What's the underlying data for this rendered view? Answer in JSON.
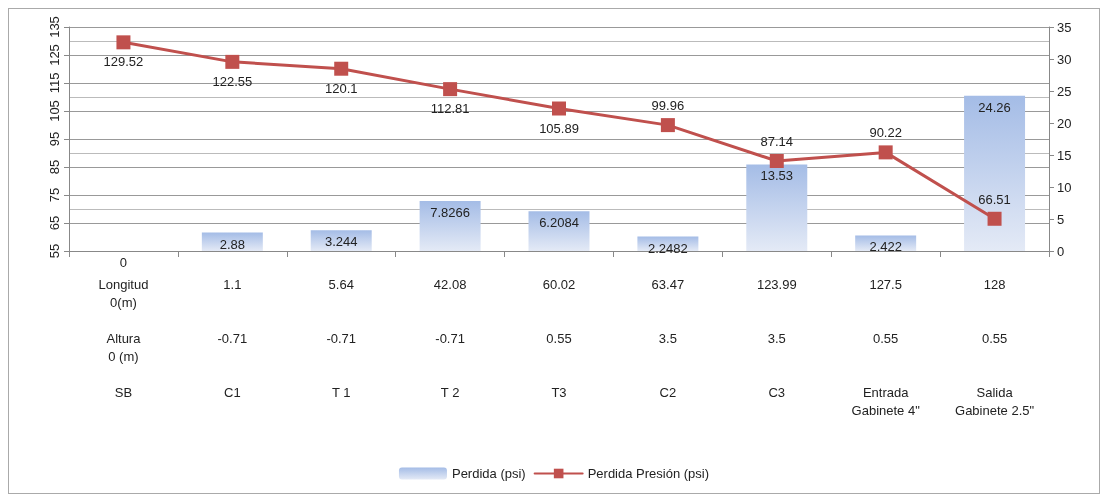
{
  "chart_data": {
    "type": "bar",
    "categories": [
      "Longitud\n0(m)\n\nAltura\n0 (m)\n\nSB",
      "1.1\n\n\n-0.71\n\n\nC1",
      "5.64\n\n\n-0.71\n\n\nT 1",
      "42.08\n\n\n-0.71\n\n\nT 2",
      "60.02\n\n\n0.55\n\n\nT3",
      "63.47\n\n\n3.5\n\n\nC2",
      "123.99\n\n\n3.5\n\n\nC3",
      "127.5\n\n\n0.55\n\n\nEntrada\nGabinete 4\"",
      "128\n\n\n0.55\n\n\nSalida\nGabinete 2.5\""
    ],
    "series": [
      {
        "name": "Perdida (psi)",
        "axis": "y2",
        "color": "#a4bce6",
        "values": [
          0,
          2.88,
          3.244,
          7.8266,
          6.2084,
          2.2482,
          13.53,
          2.422,
          24.26
        ]
      },
      {
        "name": "Perdida Presión (psi)",
        "type": "line",
        "color": "#c0504d",
        "values": [
          129.52,
          122.55,
          120.1,
          112.81,
          105.89,
          99.96,
          87.14,
          90.22,
          66.51
        ]
      }
    ],
    "ylim": [
      55,
      135
    ],
    "yticks": [
      55,
      65,
      75,
      85,
      95,
      105,
      115,
      125,
      135
    ],
    "y2lim": [
      0,
      35
    ],
    "y2ticks": [
      0,
      5,
      10,
      15,
      20,
      25,
      30,
      35
    ],
    "data_labels": true,
    "grid": "y",
    "legend": "bottom",
    "marker": "square",
    "line_style": "solid"
  }
}
